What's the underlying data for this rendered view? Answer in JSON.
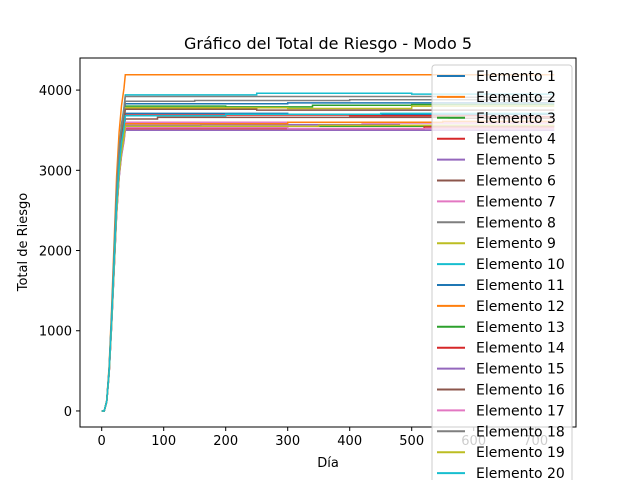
{
  "chart_data": {
    "type": "line",
    "title": "Gráfico del Total de Riesgo - Modo 5",
    "xlabel": "Día",
    "ylabel": "Total de Riesgo",
    "xlim": [
      -35,
      765
    ],
    "ylim": [
      -200,
      4400
    ],
    "xticks": [
      0,
      100,
      200,
      300,
      400,
      500,
      600,
      700
    ],
    "yticks": [
      0,
      1000,
      2000,
      3000,
      4000
    ],
    "grid": false,
    "legend_position": "upper right",
    "series": [
      {
        "name": "Elemento 1",
        "color": "#1f77b4",
        "ramp_end": 38,
        "plateau": 3830,
        "steps": [
          [
            300,
            3840
          ]
        ]
      },
      {
        "name": "Elemento 2",
        "color": "#ff7f0e",
        "ramp_end": 38,
        "plateau": 4190,
        "steps": []
      },
      {
        "name": "Elemento 3",
        "color": "#2ca02c",
        "ramp_end": 38,
        "plateau": 3800,
        "steps": [
          [
            200,
            3790
          ],
          [
            340,
            3810
          ],
          [
            500,
            3820
          ]
        ]
      },
      {
        "name": "Elemento 4",
        "color": "#d62728",
        "ramp_end": 38,
        "plateau": 3690,
        "steps": [
          [
            400,
            3680
          ],
          [
            620,
            3670
          ]
        ]
      },
      {
        "name": "Elemento 5",
        "color": "#9467bd",
        "ramp_end": 38,
        "plateau": 3560,
        "steps": [
          [
            160,
            3570
          ],
          [
            480,
            3560
          ]
        ]
      },
      {
        "name": "Elemento 6",
        "color": "#8c564b",
        "ramp_end": 38,
        "plateau": 3640,
        "steps": [
          [
            90,
            3660
          ],
          [
            560,
            3650
          ]
        ]
      },
      {
        "name": "Elemento 7",
        "color": "#e377c2",
        "ramp_end": 38,
        "plateau": 3600,
        "steps": [
          [
            420,
            3590
          ]
        ]
      },
      {
        "name": "Elemento 8",
        "color": "#7f7f7f",
        "ramp_end": 38,
        "plateau": 3860,
        "steps": [
          [
            150,
            3870
          ],
          [
            400,
            3880
          ]
        ]
      },
      {
        "name": "Elemento 9",
        "color": "#bcbd22",
        "ramp_end": 38,
        "plateau": 3780,
        "steps": [
          [
            300,
            3770
          ],
          [
            500,
            3800
          ]
        ]
      },
      {
        "name": "Elemento 10",
        "color": "#17becf",
        "ramp_end": 38,
        "plateau": 3940,
        "steps": [
          [
            250,
            3960
          ],
          [
            500,
            3950
          ]
        ]
      },
      {
        "name": "Elemento 11",
        "color": "#1f77b4",
        "ramp_end": 38,
        "plateau": 3710,
        "steps": [
          [
            300,
            3700
          ]
        ]
      },
      {
        "name": "Elemento 12",
        "color": "#ff7f0e",
        "ramp_end": 38,
        "plateau": 3580,
        "steps": [
          [
            300,
            3600
          ],
          [
            550,
            3610
          ]
        ]
      },
      {
        "name": "Elemento 13",
        "color": "#2ca02c",
        "ramp_end": 38,
        "plateau": 3540,
        "steps": [
          [
            300,
            3550
          ]
        ]
      },
      {
        "name": "Elemento 14",
        "color": "#d62728",
        "ramp_end": 38,
        "plateau": 3520,
        "steps": [
          [
            520,
            3540
          ]
        ]
      },
      {
        "name": "Elemento 15",
        "color": "#9467bd",
        "ramp_end": 38,
        "plateau": 3500,
        "steps": []
      },
      {
        "name": "Elemento 16",
        "color": "#8c564b",
        "ramp_end": 38,
        "plateau": 3760,
        "steps": [
          [
            250,
            3750
          ]
        ]
      },
      {
        "name": "Elemento 17",
        "color": "#e377c2",
        "ramp_end": 38,
        "plateau": 3530,
        "steps": [
          [
            300,
            3520
          ]
        ]
      },
      {
        "name": "Elemento 18",
        "color": "#7f7f7f",
        "ramp_end": 38,
        "plateau": 3920,
        "steps": [
          [
            550,
            3910
          ]
        ]
      },
      {
        "name": "Elemento 19",
        "color": "#bcbd22",
        "ramp_end": 38,
        "plateau": 3550,
        "steps": [
          [
            350,
            3560
          ]
        ]
      },
      {
        "name": "Elemento 20",
        "color": "#17becf",
        "ramp_end": 38,
        "plateau": 3680,
        "steps": [
          [
            200,
            3700
          ],
          [
            450,
            3710
          ]
        ]
      }
    ]
  }
}
